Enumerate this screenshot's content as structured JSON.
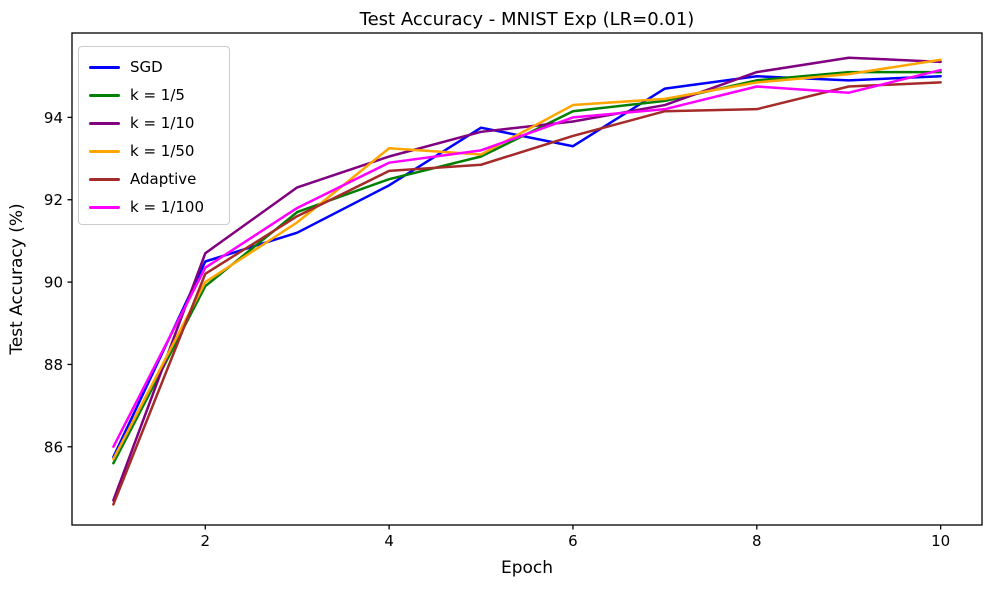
{
  "chart_data": {
    "type": "line",
    "title": "Test Accuracy - MNIST Exp (LR=0.01)",
    "xlabel": "Epoch",
    "ylabel": "Test Accuracy (%)",
    "x": [
      1,
      2,
      3,
      4,
      5,
      6,
      7,
      8,
      9,
      10
    ],
    "series": [
      {
        "name": "SGD",
        "color": "#0000ff",
        "values": [
          85.75,
          90.5,
          91.2,
          92.35,
          93.75,
          93.3,
          94.7,
          95.0,
          94.9,
          95.0
        ]
      },
      {
        "name": "k = 1/5",
        "color": "#008000",
        "values": [
          85.6,
          89.9,
          91.7,
          92.5,
          93.05,
          94.15,
          94.4,
          94.9,
          95.1,
          95.1
        ]
      },
      {
        "name": "k = 1/10",
        "color": "#800080",
        "values": [
          84.7,
          90.7,
          92.3,
          93.05,
          93.65,
          93.9,
          94.3,
          95.1,
          95.45,
          95.35
        ]
      },
      {
        "name": "k = 1/50",
        "color": "#ffa500",
        "values": [
          85.7,
          90.0,
          91.45,
          93.25,
          93.1,
          94.3,
          94.45,
          94.85,
          95.05,
          95.4
        ]
      },
      {
        "name": "Adaptive",
        "color": "#a52a2a",
        "values": [
          84.6,
          90.2,
          91.6,
          92.7,
          92.85,
          93.55,
          94.15,
          94.2,
          94.75,
          94.85
        ]
      },
      {
        "name": "k = 1/100",
        "color": "#ff00ff",
        "values": [
          86.0,
          90.35,
          91.8,
          92.9,
          93.2,
          94.0,
          94.2,
          94.75,
          94.6,
          95.15
        ]
      }
    ],
    "xlim": [
      0.55,
      10.45
    ],
    "ylim": [
      84.1,
      96.05
    ],
    "xticks": [
      2,
      4,
      6,
      8,
      10
    ],
    "yticks": [
      86,
      88,
      90,
      92,
      94
    ],
    "grid": false,
    "legend_position": "upper left",
    "line_width": 2.5,
    "axis_color": "#000000"
  }
}
